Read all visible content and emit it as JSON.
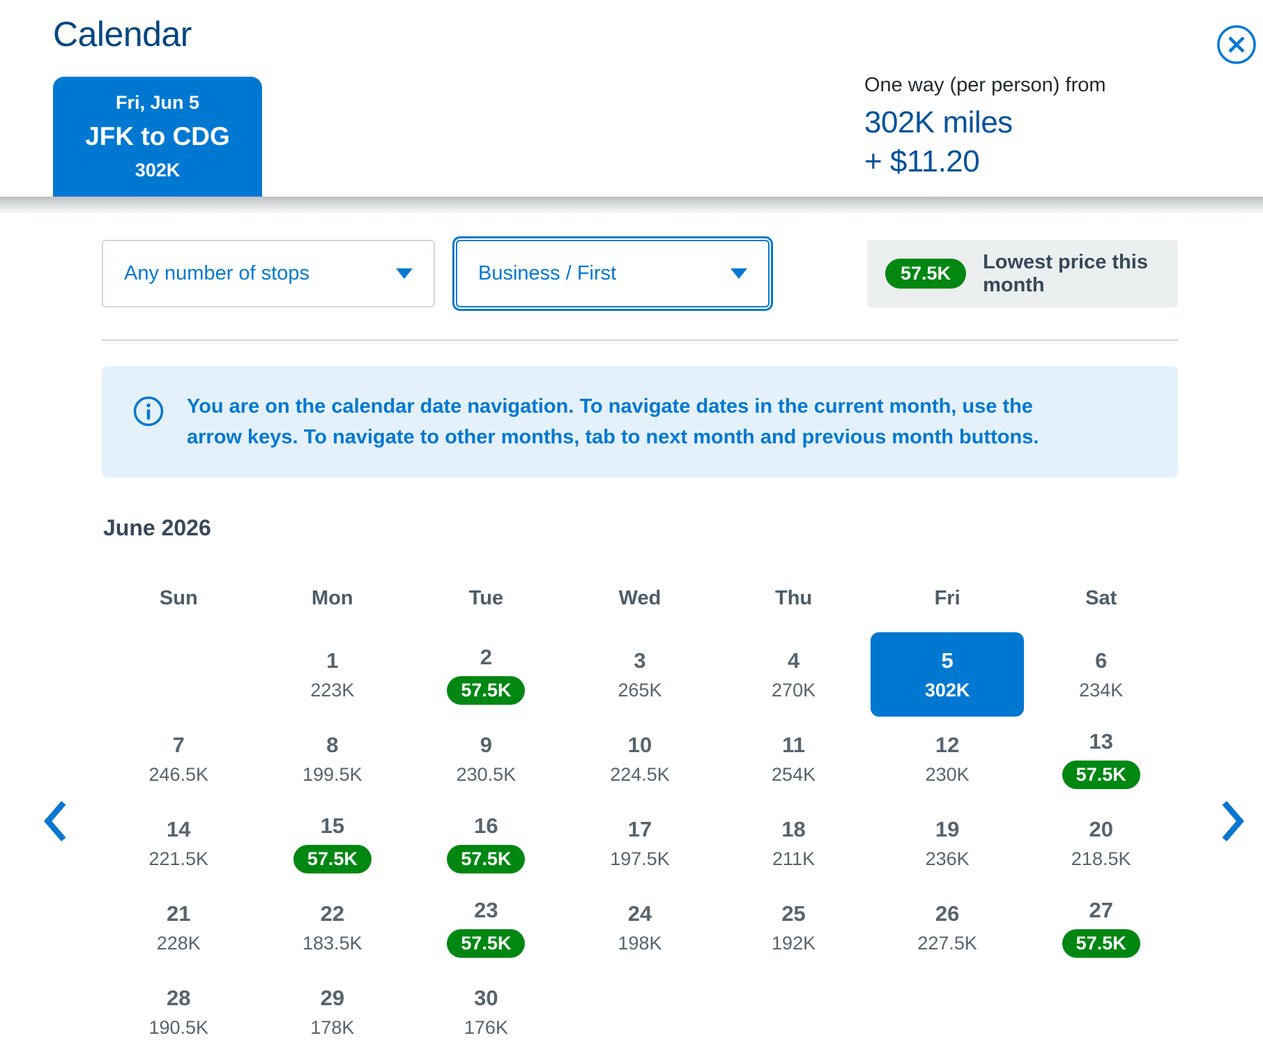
{
  "colors": {
    "brand_blue": "#0078D2",
    "title_navy": "#00467F",
    "summary_blue": "#00529B",
    "lowest_green": "#008712",
    "slate": "#36495A",
    "day_gray": "#56646E"
  },
  "header": {
    "title": "Calendar",
    "selected_card": {
      "date": "Fri, Jun 5",
      "route": "JFK to CDG",
      "price": "302K"
    },
    "summary": {
      "label": "One way (per person) from",
      "miles": "302K miles",
      "fees": "+ $11.20"
    }
  },
  "filters": {
    "stops_value": "Any number of stops",
    "cabin_value": "Business / First",
    "lowest_badge": "57.5K",
    "lowest_label": "Lowest price this month"
  },
  "notice": {
    "text": "You are on the calendar date navigation. To navigate dates in the current month, use the arrow keys. To navigate to other months, tab to next month and previous month buttons."
  },
  "calendar": {
    "month": "June 2026",
    "weekdays": [
      "Sun",
      "Mon",
      "Tue",
      "Wed",
      "Thu",
      "Fri",
      "Sat"
    ],
    "start_offset": 1,
    "days": [
      {
        "day": "1",
        "price": "223K",
        "lowest": false,
        "selected": false
      },
      {
        "day": "2",
        "price": "57.5K",
        "lowest": true,
        "selected": false
      },
      {
        "day": "3",
        "price": "265K",
        "lowest": false,
        "selected": false
      },
      {
        "day": "4",
        "price": "270K",
        "lowest": false,
        "selected": false
      },
      {
        "day": "5",
        "price": "302K",
        "lowest": false,
        "selected": true
      },
      {
        "day": "6",
        "price": "234K",
        "lowest": false,
        "selected": false
      },
      {
        "day": "7",
        "price": "246.5K",
        "lowest": false,
        "selected": false
      },
      {
        "day": "8",
        "price": "199.5K",
        "lowest": false,
        "selected": false
      },
      {
        "day": "9",
        "price": "230.5K",
        "lowest": false,
        "selected": false
      },
      {
        "day": "10",
        "price": "224.5K",
        "lowest": false,
        "selected": false
      },
      {
        "day": "11",
        "price": "254K",
        "lowest": false,
        "selected": false
      },
      {
        "day": "12",
        "price": "230K",
        "lowest": false,
        "selected": false
      },
      {
        "day": "13",
        "price": "57.5K",
        "lowest": true,
        "selected": false
      },
      {
        "day": "14",
        "price": "221.5K",
        "lowest": false,
        "selected": false
      },
      {
        "day": "15",
        "price": "57.5K",
        "lowest": true,
        "selected": false
      },
      {
        "day": "16",
        "price": "57.5K",
        "lowest": true,
        "selected": false
      },
      {
        "day": "17",
        "price": "197.5K",
        "lowest": false,
        "selected": false
      },
      {
        "day": "18",
        "price": "211K",
        "lowest": false,
        "selected": false
      },
      {
        "day": "19",
        "price": "236K",
        "lowest": false,
        "selected": false
      },
      {
        "day": "20",
        "price": "218.5K",
        "lowest": false,
        "selected": false
      },
      {
        "day": "21",
        "price": "228K",
        "lowest": false,
        "selected": false
      },
      {
        "day": "22",
        "price": "183.5K",
        "lowest": false,
        "selected": false
      },
      {
        "day": "23",
        "price": "57.5K",
        "lowest": true,
        "selected": false
      },
      {
        "day": "24",
        "price": "198K",
        "lowest": false,
        "selected": false
      },
      {
        "day": "25",
        "price": "192K",
        "lowest": false,
        "selected": false
      },
      {
        "day": "26",
        "price": "227.5K",
        "lowest": false,
        "selected": false
      },
      {
        "day": "27",
        "price": "57.5K",
        "lowest": true,
        "selected": false
      },
      {
        "day": "28",
        "price": "190.5K",
        "lowest": false,
        "selected": false
      },
      {
        "day": "29",
        "price": "178K",
        "lowest": false,
        "selected": false
      },
      {
        "day": "30",
        "price": "176K",
        "lowest": false,
        "selected": false
      }
    ]
  }
}
